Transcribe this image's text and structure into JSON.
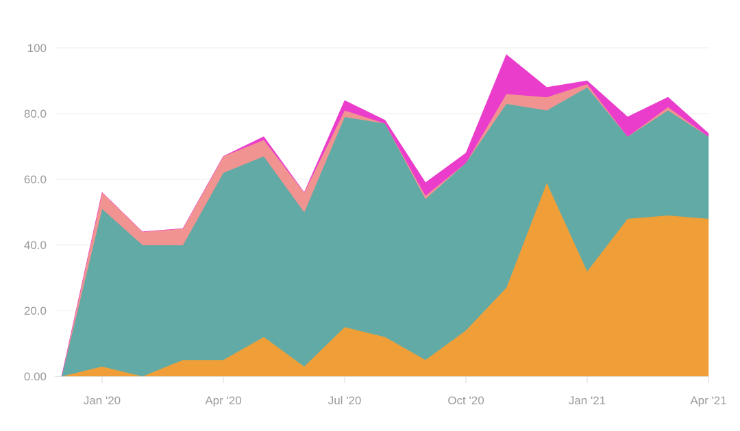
{
  "chart_data": {
    "type": "area",
    "stacked": true,
    "title": "",
    "xlabel": "",
    "ylabel": "",
    "ylim": [
      0,
      100
    ],
    "grid": "horizontal",
    "legend": "none",
    "x": [
      "2019-12",
      "2020-01",
      "2020-02",
      "2020-03",
      "2020-04",
      "2020-05",
      "2020-06",
      "2020-07",
      "2020-08",
      "2020-09",
      "2020-10",
      "2020-11",
      "2020-12",
      "2021-01",
      "2021-02",
      "2021-03",
      "2021-04"
    ],
    "x_tick_labels": [
      "Jan '20",
      "Apr '20",
      "Jul '20",
      "Oct '20",
      "Jan '21",
      "Apr '21"
    ],
    "x_tick_positions": [
      "2020-01",
      "2020-04",
      "2020-07",
      "2020-10",
      "2021-01",
      "2021-04"
    ],
    "y_tick_labels": [
      "0.00",
      "20.0",
      "40.0",
      "60.0",
      "80.0",
      "100"
    ],
    "y_ticks": [
      0,
      20,
      40,
      60,
      80,
      100
    ],
    "series": [
      {
        "color": "#F09F38",
        "values": [
          0,
          3,
          0,
          5,
          5,
          12,
          3,
          15,
          12,
          5,
          14,
          27,
          59,
          32,
          48,
          49,
          48
        ]
      },
      {
        "color": "#62AAA5",
        "values": [
          0,
          48,
          40,
          35,
          57,
          55,
          47,
          64,
          65,
          49,
          51,
          56,
          22,
          56,
          25,
          32,
          25
        ]
      },
      {
        "color": "#F19491",
        "values": [
          0,
          5,
          4,
          5,
          5,
          5,
          6,
          2,
          0,
          1,
          0,
          3,
          4,
          1,
          0,
          1,
          0
        ]
      },
      {
        "color": "#EA3DCC",
        "values": [
          0,
          0,
          0,
          0,
          0,
          1,
          0,
          3,
          1,
          4,
          3,
          12,
          3,
          1,
          6,
          3,
          1
        ]
      }
    ]
  }
}
